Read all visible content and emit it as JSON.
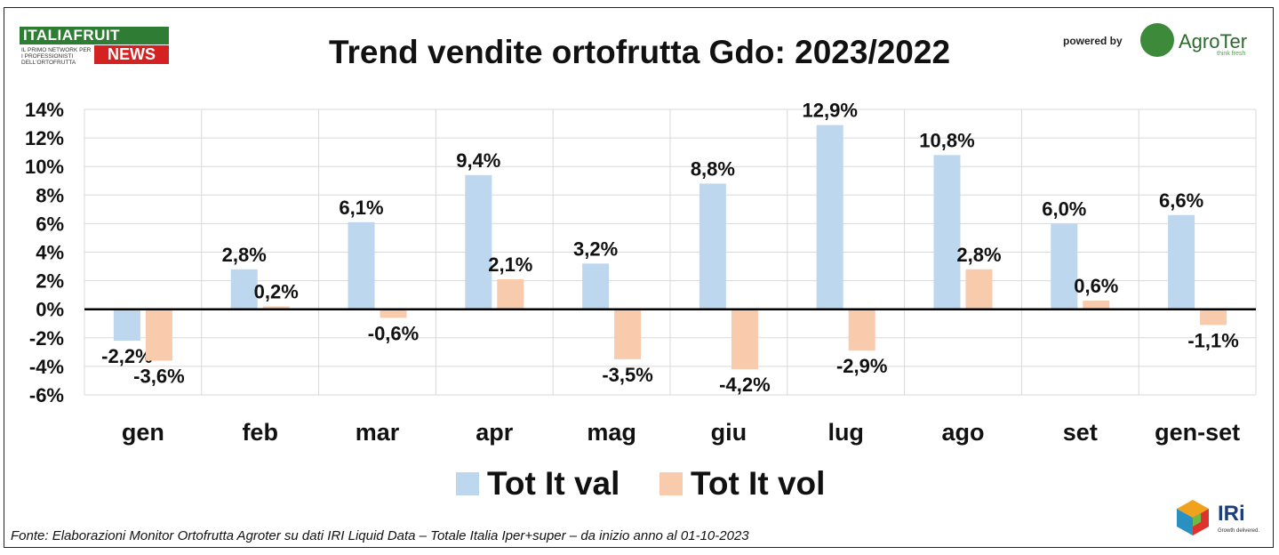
{
  "header": {
    "title": "Trend vendite ortofrutta Gdo: 2023/2022",
    "logo_left_top": "ITALIAFRUIT",
    "logo_left_sub": "IL PRIMO NETWORK PER I PROFESSIONISTI DELL'ORTOFRUTTA",
    "logo_left_news": "NEWS",
    "powered_by": "powered by",
    "logo_right_name": "AgroTer",
    "logo_right_tagline": "think fresh"
  },
  "footer": {
    "source": "Fonte: Elaborazioni Monitor Ortofrutta Agroter su dati IRI Liquid Data – Totale Italia Iper+super –  da inizio anno al 01-10-2023",
    "iri_name": "IRi",
    "iri_tagline": "Growth delivered."
  },
  "colors": {
    "val": "#bdd7ee",
    "vol": "#f8cbad",
    "grid": "#d9d9d9",
    "zero_line": "#000000"
  },
  "chart_data": {
    "type": "bar",
    "title": "Trend vendite ortofrutta Gdo: 2023/2022",
    "categories": [
      "gen",
      "feb",
      "mar",
      "apr",
      "mag",
      "giu",
      "lug",
      "ago",
      "set",
      "gen-set"
    ],
    "series": [
      {
        "name": "Tot It val",
        "values": [
          -2.2,
          2.8,
          6.1,
          9.4,
          3.2,
          8.8,
          12.9,
          10.8,
          6.0,
          6.6
        ],
        "labels": [
          "-2,2%",
          "2,8%",
          "6,1%",
          "9,4%",
          "3,2%",
          "8,8%",
          "12,9%",
          "10,8%",
          "6,0%",
          "6,6%"
        ]
      },
      {
        "name": "Tot It vol",
        "values": [
          -3.6,
          0.2,
          -0.6,
          2.1,
          -3.5,
          -4.2,
          -2.9,
          2.8,
          0.6,
          -1.1
        ],
        "labels": [
          "-3,6%",
          "0,2%",
          "-0,6%",
          "2,1%",
          "-3,5%",
          "-4,2%",
          "-2,9%",
          "2,8%",
          "0,6%",
          "-1,1%"
        ]
      }
    ],
    "yticks": [
      "14%",
      "12%",
      "10%",
      "8%",
      "6%",
      "4%",
      "2%",
      "0%",
      "-2%",
      "-4%",
      "-6%"
    ],
    "ytick_values": [
      14,
      12,
      10,
      8,
      6,
      4,
      2,
      0,
      -2,
      -4,
      -6
    ],
    "ylim": [
      -6,
      14
    ],
    "grid": true,
    "legend_position": "bottom"
  }
}
